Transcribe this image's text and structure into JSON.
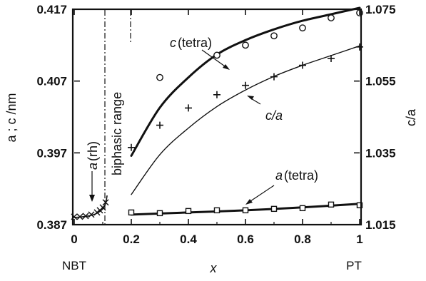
{
  "chart_data": {
    "type": "scatter",
    "title": "",
    "xlabel": "x",
    "ylabel_left": "a ; c /nm",
    "ylabel_right": "c/a",
    "xlim": [
      0,
      1
    ],
    "ylim_left": [
      0.387,
      0.417
    ],
    "ylim_right": [
      1.015,
      1.075
    ],
    "x_ticks": [
      0,
      0.2,
      0.4,
      0.6,
      0.8,
      1
    ],
    "x_tick_labels": [
      "0",
      "0.2",
      "0.4",
      "0.6",
      "0.8",
      "1"
    ],
    "x_end_labels": [
      "NBT",
      "PT"
    ],
    "y_left_ticks": [
      0.387,
      0.397,
      0.407,
      0.417
    ],
    "y_left_tick_labels": [
      "0.387",
      "0.397",
      "0.407",
      "0.417"
    ],
    "y_right_ticks": [
      1.015,
      1.035,
      1.055,
      1.075
    ],
    "y_right_tick_labels": [
      "1.015",
      "1.035",
      "1.055",
      "1.075"
    ],
    "grid": false,
    "legend": "none",
    "region_label": "biphasic range",
    "biphasic_range": [
      0.11,
      0.2
    ],
    "series": [
      {
        "name": "c (tetra)",
        "axis": "left",
        "marker": "circle",
        "points": [
          [
            0.3,
            0.4075
          ],
          [
            0.5,
            0.4106
          ],
          [
            0.6,
            0.412
          ],
          [
            0.7,
            0.4133
          ],
          [
            0.8,
            0.4144
          ],
          [
            0.9,
            0.4158
          ],
          [
            1.0,
            0.4165
          ]
        ],
        "fit": [
          [
            0.2,
            0.3966
          ],
          [
            0.3,
            0.4033
          ],
          [
            0.4,
            0.4075
          ],
          [
            0.5,
            0.4107
          ],
          [
            0.6,
            0.4127
          ],
          [
            0.7,
            0.4142
          ],
          [
            0.8,
            0.4154
          ],
          [
            0.9,
            0.4163
          ],
          [
            1.0,
            0.4172
          ]
        ]
      },
      {
        "name": "c/a",
        "axis": "right",
        "marker": "plus",
        "points": [
          [
            0.2,
            1.0365
          ],
          [
            0.3,
            1.0427
          ],
          [
            0.4,
            1.0475
          ],
          [
            0.5,
            1.0512
          ],
          [
            0.6,
            1.0538
          ],
          [
            0.7,
            1.0562
          ],
          [
            0.8,
            1.0594
          ],
          [
            0.9,
            1.0613
          ],
          [
            1.0,
            1.0645
          ]
        ],
        "fit": [
          [
            0.2,
            1.0234
          ],
          [
            0.3,
            1.0345
          ],
          [
            0.4,
            1.0419
          ],
          [
            0.5,
            1.0479
          ],
          [
            0.6,
            1.0525
          ],
          [
            0.7,
            1.0563
          ],
          [
            0.8,
            1.0594
          ],
          [
            0.9,
            1.0621
          ],
          [
            1.0,
            1.0648
          ]
        ]
      },
      {
        "name": "a (tetra)",
        "axis": "left",
        "marker": "square",
        "points": [
          [
            0.2,
            0.3887
          ],
          [
            0.3,
            0.3886
          ],
          [
            0.4,
            0.3889
          ],
          [
            0.5,
            0.389
          ],
          [
            0.6,
            0.389
          ],
          [
            0.7,
            0.3892
          ],
          [
            0.8,
            0.3893
          ],
          [
            0.9,
            0.3898
          ],
          [
            1.0,
            0.3897
          ]
        ],
        "fit": [
          [
            0.2,
            0.3884
          ],
          [
            0.4,
            0.3887
          ],
          [
            0.6,
            0.389
          ],
          [
            0.8,
            0.3894
          ],
          [
            1.0,
            0.3899
          ]
        ]
      },
      {
        "name": "a (rh)",
        "axis": "left",
        "marker": "cross",
        "points": [
          [
            0.0,
            0.3881
          ],
          [
            0.02,
            0.3881
          ],
          [
            0.04,
            0.3882
          ],
          [
            0.06,
            0.3884
          ],
          [
            0.08,
            0.3887
          ],
          [
            0.09,
            0.389
          ],
          [
            0.1,
            0.3894
          ],
          [
            0.11,
            0.3901
          ]
        ],
        "fit": [
          [
            0.0,
            0.388
          ],
          [
            0.03,
            0.3881
          ],
          [
            0.06,
            0.3883
          ],
          [
            0.08,
            0.3886
          ],
          [
            0.1,
            0.3892
          ],
          [
            0.11,
            0.39
          ],
          [
            0.115,
            0.391
          ]
        ]
      }
    ],
    "annotations": [
      {
        "text": "c",
        "suffix": "(tetra)",
        "points_to": "c (tetra)"
      },
      {
        "text": "c",
        "suffix": "/a",
        "points_to": "c/a"
      },
      {
        "text": "a",
        "suffix": "(tetra)",
        "points_to": "a (tetra)"
      },
      {
        "text": "a",
        "suffix": "(rh)",
        "points_to": "a (rh)"
      }
    ]
  }
}
